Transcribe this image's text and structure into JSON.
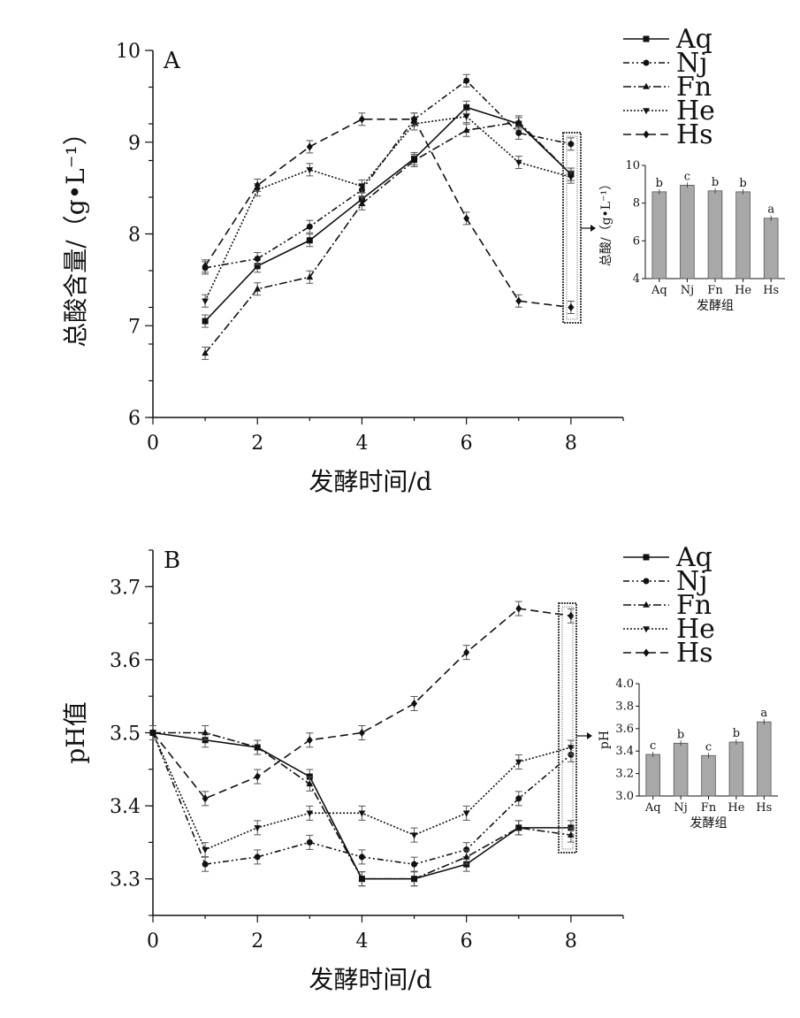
{
  "chart_data": [
    {
      "type": "line",
      "panel": "A",
      "xlabel": "发酵时间/d",
      "ylabel": "总酸含量/（g•L⁻¹）",
      "xlim": [
        0,
        9
      ],
      "ylim": [
        6,
        10
      ],
      "xticks": [
        "0",
        "2",
        "4",
        "6",
        "8"
      ],
      "yticks": [
        "6",
        "7",
        "8",
        "9",
        "10"
      ],
      "x": [
        1,
        2,
        3,
        4,
        5,
        6,
        7,
        8
      ],
      "series": [
        {
          "name": "Aq",
          "values": [
            7.05,
            7.65,
            7.93,
            8.38,
            8.82,
            9.38,
            9.2,
            8.65
          ]
        },
        {
          "name": "Nj",
          "values": [
            7.63,
            7.73,
            8.08,
            8.48,
            9.25,
            9.67,
            9.1,
            8.98
          ]
        },
        {
          "name": "Fn",
          "values": [
            6.7,
            7.4,
            7.53,
            8.33,
            8.8,
            9.13,
            9.22,
            8.65
          ]
        },
        {
          "name": "He",
          "values": [
            7.27,
            8.48,
            8.7,
            8.52,
            9.2,
            9.28,
            8.78,
            8.62
          ]
        },
        {
          "name": "Hs",
          "values": [
            7.65,
            8.53,
            8.95,
            9.25,
            9.25,
            8.17,
            7.27,
            7.2
          ]
        }
      ],
      "legend": [
        "Aq",
        "Nj",
        "Fn",
        "He",
        "Hs"
      ],
      "legend_position": "top-right",
      "inset": {
        "type": "bar",
        "categories": [
          "Aq",
          "Nj",
          "Fn",
          "He",
          "Hs"
        ],
        "values": [
          8.6,
          8.95,
          8.65,
          8.6,
          7.2
        ],
        "significance": [
          "b",
          "c",
          "b",
          "b",
          "a"
        ],
        "ylabel": "总酸/（g•L⁻¹）",
        "xlabel": "发酵组",
        "ylim": [
          4,
          10
        ],
        "yticks": [
          "4",
          "6",
          "8",
          "10"
        ]
      }
    },
    {
      "type": "line",
      "panel": "B",
      "xlabel": "发酵时间/d",
      "ylabel": "pH值",
      "xlim": [
        0,
        9
      ],
      "ylim": [
        3.25,
        3.75
      ],
      "xticks": [
        "0",
        "2",
        "4",
        "6",
        "8"
      ],
      "yticks": [
        "3.3",
        "3.4",
        "3.5",
        "3.6",
        "3.7"
      ],
      "x": [
        0,
        1,
        2,
        3,
        4,
        5,
        6,
        7,
        8
      ],
      "series": [
        {
          "name": "Aq",
          "values": [
            3.5,
            3.49,
            3.48,
            3.44,
            3.3,
            3.3,
            3.32,
            3.37,
            3.37
          ]
        },
        {
          "name": "Nj",
          "values": [
            3.5,
            3.32,
            3.33,
            3.35,
            3.33,
            3.32,
            3.34,
            3.41,
            3.47
          ]
        },
        {
          "name": "Fn",
          "values": [
            3.5,
            3.5,
            3.48,
            3.43,
            3.3,
            3.3,
            3.33,
            3.37,
            3.36
          ]
        },
        {
          "name": "He",
          "values": [
            3.5,
            3.34,
            3.37,
            3.39,
            3.39,
            3.36,
            3.39,
            3.46,
            3.48
          ]
        },
        {
          "name": "Hs",
          "values": [
            3.5,
            3.41,
            3.44,
            3.49,
            3.5,
            3.54,
            3.61,
            3.67,
            3.66
          ]
        }
      ],
      "legend": [
        "Aq",
        "Nj",
        "Fn",
        "He",
        "Hs"
      ],
      "legend_position": "top-right",
      "inset": {
        "type": "bar",
        "categories": [
          "Aq",
          "Nj",
          "Fn",
          "He",
          "Hs"
        ],
        "values": [
          3.37,
          3.47,
          3.36,
          3.48,
          3.66
        ],
        "significance": [
          "c",
          "b",
          "c",
          "b",
          "a"
        ],
        "ylabel": "pH",
        "xlabel": "发酵组",
        "ylim": [
          3.0,
          4.0
        ],
        "yticks": [
          "3.0",
          "3.2",
          "3.4",
          "3.6",
          "3.8",
          "4.0"
        ]
      }
    }
  ]
}
